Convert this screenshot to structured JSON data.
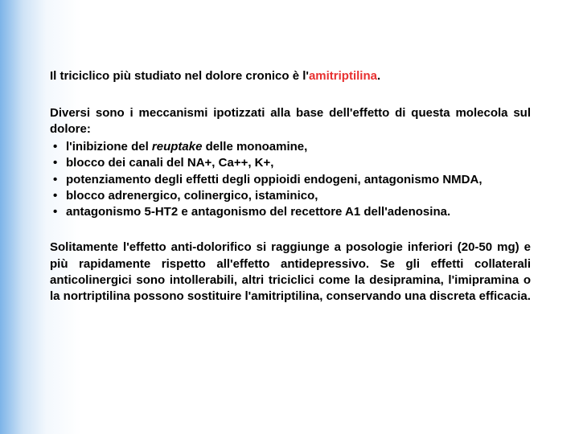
{
  "slide": {
    "background_gradient": [
      "#7db4e8",
      "#cfe3f6",
      "#f3f8fd",
      "#ffffff"
    ],
    "text_color": "#000000",
    "highlight_color": "#e83030",
    "font_size_pt": 15,
    "font_weight": "bold"
  },
  "intro": {
    "prefix": "Il triciclico più studiato nel dolore cronico è l'",
    "drug": "amitriptilina",
    "suffix": "."
  },
  "lead": "Diversi sono i meccanismi ipotizzati alla base dell'effetto di questa molecola sul dolore:",
  "items": [
    {
      "pre": "l'inibizione del ",
      "em": "reuptake",
      "post": " delle monoamine,"
    },
    {
      "pre": "blocco dei canali del NA+, Ca++, K+,",
      "em": "",
      "post": ""
    },
    {
      "pre": "potenziamento degli effetti degli oppioidi endogeni, antagonismo NMDA,",
      "em": "",
      "post": ""
    },
    {
      "pre": "blocco adrenergico, colinergico, istaminico,",
      "em": "",
      "post": ""
    },
    {
      "pre": "antagonismo 5-HT2 e antagonismo del recettore A1 dell'adenosina.",
      "em": "",
      "post": ""
    }
  ],
  "conclusion": "Solitamente l'effetto anti-dolorifico si raggiunge a posologie inferiori (20-50 mg) e più rapidamente rispetto all'effetto antidepressivo. Se gli effetti collaterali anticolinergici sono intollerabili, altri triciclici come la desipramina, l'imipramina o la nortriptilina possono sostituire l'amitriptilina, conservando una discreta efficacia."
}
